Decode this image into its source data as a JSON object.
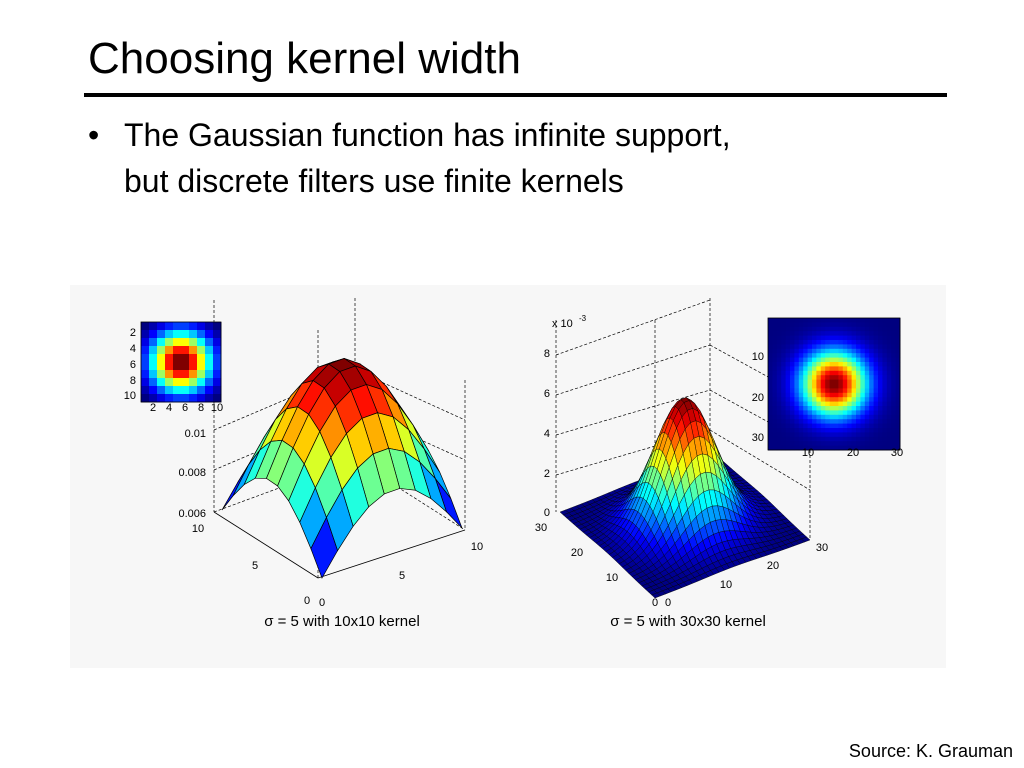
{
  "title": "Choosing kernel width",
  "bullet": {
    "lines": [
      "The Gaussian function has infinite support,",
      "but discrete filters use finite kernels"
    ]
  },
  "figures": [
    {
      "inset_y_ticks": [
        "2",
        "4",
        "6",
        "8",
        "10"
      ],
      "inset_x_ticks": [
        "2",
        "4",
        "6",
        "8",
        "10"
      ],
      "z_ticks": [
        "0.01",
        "0.008",
        "0.006"
      ],
      "y_ticks": [
        "10",
        "5",
        "0"
      ],
      "x_ticks": [
        "0",
        "5",
        "10"
      ],
      "caption": "σ = 5 with 10x10 kernel"
    },
    {
      "exponent": "x 10",
      "exponent_power": "-3",
      "inset_y_ticks": [
        "10",
        "20",
        "30"
      ],
      "inset_x_ticks": [
        "10",
        "20",
        "30"
      ],
      "z_ticks": [
        "8",
        "6",
        "4",
        "2",
        "0"
      ],
      "y_ticks": [
        "30",
        "20",
        "10",
        "0"
      ],
      "x_ticks": [
        "0",
        "10",
        "20",
        "30"
      ],
      "caption": "σ = 5 with 30x30 kernel"
    }
  ],
  "source": "Source: K. Grauman"
}
